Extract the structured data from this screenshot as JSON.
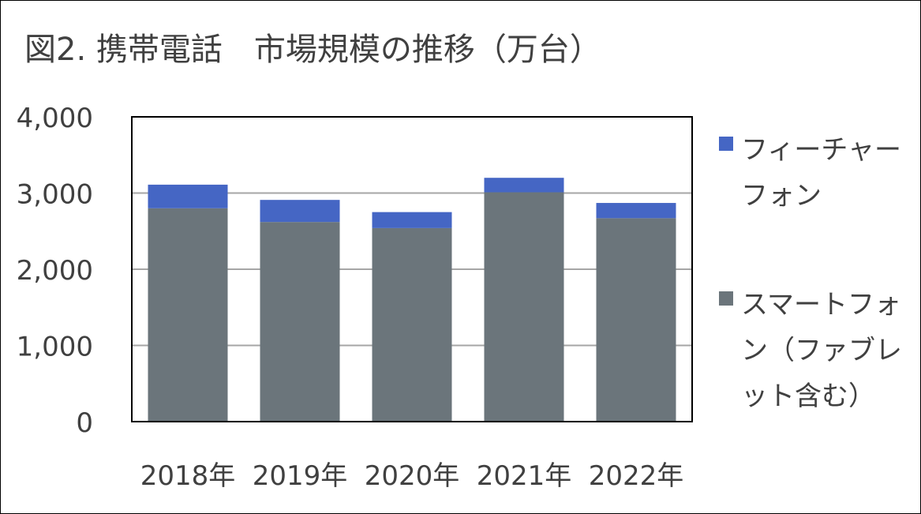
{
  "chart_data": {
    "type": "bar",
    "stacked": true,
    "title": "図2. 携帯電話　市場規模の推移（万台）",
    "categories": [
      "2018年",
      "2019年",
      "2020年",
      "2021年",
      "2022年"
    ],
    "series": [
      {
        "name": "スマートフォン（ファブレット含む）",
        "color": "#6b757b",
        "values": [
          2800,
          2620,
          2540,
          3010,
          2670
        ]
      },
      {
        "name": "フィーチャーフォン",
        "color": "#4566c4",
        "values": [
          310,
          290,
          210,
          190,
          200
        ]
      }
    ],
    "ylim": [
      0,
      4000
    ],
    "yticks": [
      "0",
      "1,000",
      "2,000",
      "3,000",
      "4,000"
    ],
    "ytick_values": [
      0,
      1000,
      2000,
      3000,
      4000
    ],
    "grid": true,
    "legend_position": "right"
  }
}
